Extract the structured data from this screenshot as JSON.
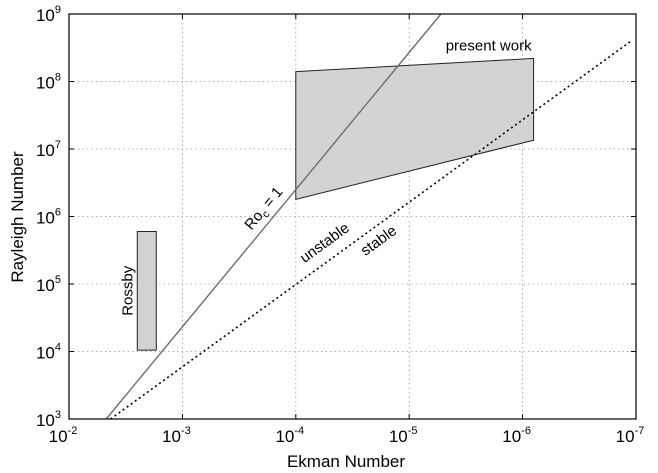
{
  "chart_data": {
    "type": "area",
    "title": "",
    "xlabel": "Ekman Number",
    "ylabel": "Rayleigh Number",
    "x_scale": "log",
    "y_scale": "log",
    "x_reversed": true,
    "xlim": [
      0.01,
      1e-07
    ],
    "ylim": [
      1000,
      1000000000
    ],
    "grid": true,
    "x_tick_labels": [
      {
        "value": 0.01,
        "base": "10",
        "exp": "-2"
      },
      {
        "value": 0.001,
        "base": "10",
        "exp": "-3"
      },
      {
        "value": 0.0001,
        "base": "10",
        "exp": "-4"
      },
      {
        "value": 1e-05,
        "base": "10",
        "exp": "-5"
      },
      {
        "value": 1e-06,
        "base": "10",
        "exp": "-6"
      },
      {
        "value": 1e-07,
        "base": "10",
        "exp": "-7"
      }
    ],
    "y_tick_labels": [
      {
        "value": 1000,
        "base": "10",
        "exp": "3"
      },
      {
        "value": 10000,
        "base": "10",
        "exp": "4"
      },
      {
        "value": 100000,
        "base": "10",
        "exp": "5"
      },
      {
        "value": 1000000,
        "base": "10",
        "exp": "6"
      },
      {
        "value": 10000000,
        "base": "10",
        "exp": "7"
      },
      {
        "value": 100000000,
        "base": "10",
        "exp": "8"
      },
      {
        "value": 1000000000,
        "base": "10",
        "exp": "9"
      }
    ],
    "regions": [
      {
        "label": "Rossby",
        "color": "#d3d3d3",
        "points": [
          [
            0.0025,
            600000
          ],
          [
            0.0017,
            600000
          ],
          [
            0.0017,
            10500
          ],
          [
            0.0025,
            10500
          ]
        ]
      },
      {
        "label": "present work",
        "color": "#d3d3d3",
        "points": [
          [
            0.0001,
            140000000
          ],
          [
            8e-07,
            220000000
          ],
          [
            8e-07,
            13500000
          ],
          [
            0.0001,
            1800000
          ]
        ]
      }
    ],
    "lines": [
      {
        "label_main": "Ro",
        "label_sub": "c",
        "label_rest": " = 1",
        "style": "solid",
        "color": "#6e6e6e",
        "points": [
          [
            0.0047,
            1000
          ],
          [
            5.25e-06,
            1000000000
          ]
        ]
      },
      {
        "label_above": "unstable",
        "label_below": "stable",
        "style": "dotted",
        "color": "#000000",
        "points": [
          [
            0.0043,
            1000
          ],
          [
            1.1e-07,
            400000000
          ]
        ]
      }
    ]
  }
}
